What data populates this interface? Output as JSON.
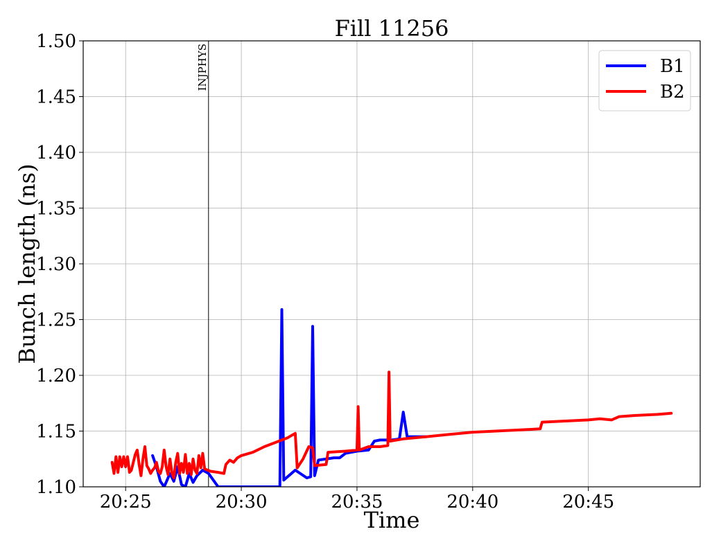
{
  "chart_data": {
    "type": "line",
    "title": "Fill 11256",
    "xlabel": "Time",
    "ylabel": "Bunch length (ns)",
    "xlim": [
      "20:23:10",
      "20:49:50"
    ],
    "ylim": [
      1.1,
      1.5
    ],
    "x_ticks": [
      "20:25",
      "20:30",
      "20:35",
      "20:40",
      "20:45"
    ],
    "y_ticks": [
      "1.10",
      "1.15",
      "1.20",
      "1.25",
      "1.30",
      "1.35",
      "1.40",
      "1.45",
      "1.50"
    ],
    "grid": true,
    "legend_position": "top-right",
    "annotations": [
      {
        "label": "INJPHYS",
        "x": "20:28:35"
      }
    ],
    "series": [
      {
        "name": "B1",
        "color": "#0000ff",
        "points": [
          [
            "20:26:10",
            1.128
          ],
          [
            "20:26:20",
            1.118
          ],
          [
            "20:26:30",
            1.105
          ],
          [
            "20:26:40",
            1.1
          ],
          [
            "20:26:55",
            1.112
          ],
          [
            "20:27:05",
            1.105
          ],
          [
            "20:27:15",
            1.118
          ],
          [
            "20:27:25",
            1.102
          ],
          [
            "20:27:35",
            1.1
          ],
          [
            "20:27:45",
            1.112
          ],
          [
            "20:27:55",
            1.104
          ],
          [
            "20:28:05",
            1.11
          ],
          [
            "20:28:20",
            1.115
          ],
          [
            "20:28:35",
            1.112
          ],
          [
            "20:29:00",
            1.1
          ],
          [
            "20:31:40",
            1.1
          ],
          [
            "20:31:45",
            1.259
          ],
          [
            "20:31:50",
            1.106
          ],
          [
            "20:32:20",
            1.115
          ],
          [
            "20:32:50",
            1.108
          ],
          [
            "20:33:00",
            1.109
          ],
          [
            "20:33:05",
            1.244
          ],
          [
            "20:33:10",
            1.11
          ],
          [
            "20:33:20",
            1.124
          ],
          [
            "20:34:00",
            1.126
          ],
          [
            "20:34:15",
            1.126
          ],
          [
            "20:34:30",
            1.13
          ],
          [
            "20:35:00",
            1.132
          ],
          [
            "20:35:30",
            1.133
          ],
          [
            "20:35:45",
            1.141
          ],
          [
            "20:36:00",
            1.142
          ],
          [
            "20:36:30",
            1.142
          ],
          [
            "20:36:50",
            1.143
          ],
          [
            "20:37:00",
            1.167
          ],
          [
            "20:37:10",
            1.145
          ],
          [
            "20:38:00",
            1.145
          ]
        ]
      },
      {
        "name": "B2",
        "color": "#ff0000",
        "points": [
          [
            "20:24:25",
            1.122
          ],
          [
            "20:24:30",
            1.112
          ],
          [
            "20:24:35",
            1.127
          ],
          [
            "20:24:40",
            1.113
          ],
          [
            "20:24:45",
            1.127
          ],
          [
            "20:24:50",
            1.118
          ],
          [
            "20:24:55",
            1.127
          ],
          [
            "20:25:00",
            1.118
          ],
          [
            "20:25:05",
            1.127
          ],
          [
            "20:25:10",
            1.113
          ],
          [
            "20:25:15",
            1.115
          ],
          [
            "20:25:20",
            1.122
          ],
          [
            "20:25:25",
            1.129
          ],
          [
            "20:25:30",
            1.133
          ],
          [
            "20:25:35",
            1.12
          ],
          [
            "20:25:40",
            1.11
          ],
          [
            "20:25:45",
            1.125
          ],
          [
            "20:25:50",
            1.136
          ],
          [
            "20:25:55",
            1.119
          ],
          [
            "20:26:00",
            1.116
          ],
          [
            "20:26:05",
            1.112
          ],
          [
            "20:26:10",
            1.115
          ],
          [
            "20:26:15",
            1.117
          ],
          [
            "20:26:20",
            1.122
          ],
          [
            "20:26:25",
            1.114
          ],
          [
            "20:26:30",
            1.112
          ],
          [
            "20:26:35",
            1.118
          ],
          [
            "20:26:40",
            1.133
          ],
          [
            "20:26:45",
            1.118
          ],
          [
            "20:26:50",
            1.111
          ],
          [
            "20:26:55",
            1.125
          ],
          [
            "20:27:00",
            1.113
          ],
          [
            "20:27:05",
            1.108
          ],
          [
            "20:27:10",
            1.122
          ],
          [
            "20:27:15",
            1.13
          ],
          [
            "20:27:20",
            1.112
          ],
          [
            "20:27:25",
            1.121
          ],
          [
            "20:27:30",
            1.113
          ],
          [
            "20:27:35",
            1.129
          ],
          [
            "20:27:40",
            1.112
          ],
          [
            "20:27:45",
            1.121
          ],
          [
            "20:27:50",
            1.111
          ],
          [
            "20:27:55",
            1.125
          ],
          [
            "20:28:00",
            1.115
          ],
          [
            "20:28:05",
            1.112
          ],
          [
            "20:28:10",
            1.128
          ],
          [
            "20:28:15",
            1.117
          ],
          [
            "20:28:20",
            1.13
          ],
          [
            "20:28:25",
            1.116
          ],
          [
            "20:28:40",
            1.114
          ],
          [
            "20:29:00",
            1.113
          ],
          [
            "20:29:15",
            1.112
          ],
          [
            "20:29:20",
            1.12
          ],
          [
            "20:29:30",
            1.124
          ],
          [
            "20:29:40",
            1.122
          ],
          [
            "20:29:50",
            1.126
          ],
          [
            "20:30:00",
            1.128
          ],
          [
            "20:30:30",
            1.131
          ],
          [
            "20:31:00",
            1.136
          ],
          [
            "20:31:30",
            1.14
          ],
          [
            "20:32:00",
            1.144
          ],
          [
            "20:32:20",
            1.148
          ],
          [
            "20:32:25",
            1.117
          ],
          [
            "20:32:40",
            1.125
          ],
          [
            "20:32:55",
            1.136
          ],
          [
            "20:33:05",
            1.135
          ],
          [
            "20:33:10",
            1.119
          ],
          [
            "20:33:40",
            1.12
          ],
          [
            "20:33:45",
            1.131
          ],
          [
            "20:34:30",
            1.132
          ],
          [
            "20:35:00",
            1.133
          ],
          [
            "20:35:03",
            1.172
          ],
          [
            "20:35:06",
            1.133
          ],
          [
            "20:35:30",
            1.136
          ],
          [
            "20:36:00",
            1.136
          ],
          [
            "20:36:20",
            1.137
          ],
          [
            "20:36:23",
            1.203
          ],
          [
            "20:36:26",
            1.141
          ],
          [
            "20:37:00",
            1.143
          ],
          [
            "20:38:00",
            1.145
          ],
          [
            "20:39:00",
            1.147
          ],
          [
            "20:40:00",
            1.149
          ],
          [
            "20:41:00",
            1.15
          ],
          [
            "20:42:00",
            1.151
          ],
          [
            "20:42:55",
            1.152
          ],
          [
            "20:43:00",
            1.158
          ],
          [
            "20:44:00",
            1.159
          ],
          [
            "20:45:00",
            1.16
          ],
          [
            "20:45:30",
            1.161
          ],
          [
            "20:46:00",
            1.16
          ],
          [
            "20:46:20",
            1.163
          ],
          [
            "20:47:00",
            1.164
          ],
          [
            "20:48:00",
            1.165
          ],
          [
            "20:48:35",
            1.166
          ]
        ]
      }
    ]
  }
}
